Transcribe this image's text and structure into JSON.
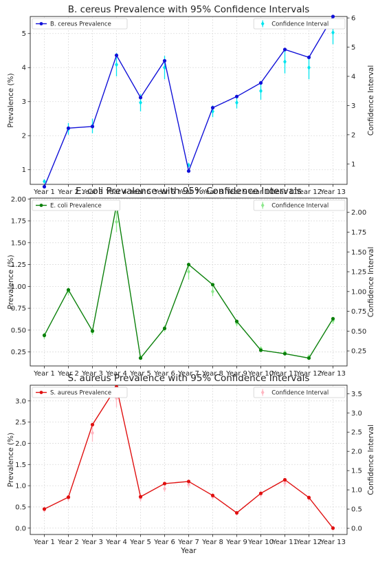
{
  "xlabel": "Year",
  "chart_data": [
    {
      "type": "line",
      "title": "B. cereus Prevalence with 95% Confidence Intervals",
      "xlabel": "",
      "ylabel": "Prevalence (%)",
      "y2label": "Confidence Interval",
      "categories": [
        "Year 1",
        "Year 2",
        "Year 3",
        "Year 4",
        "Year 5",
        "Year 6",
        "Year 7",
        "Year 8",
        "Year 9",
        "Year 10",
        "Year 11",
        "Year 12",
        "Year 13"
      ],
      "ylim": [
        0.57,
        5.5
      ],
      "y2lim": [
        0.3,
        6.05
      ],
      "yticks": [
        1,
        2,
        3,
        4,
        5
      ],
      "y2ticks": [
        1,
        2,
        3,
        4,
        5,
        6
      ],
      "tick_decimals": 0,
      "grid": true,
      "legend_left": "top-left",
      "legend_right": "top-right",
      "series": [
        {
          "name": "B. cereus Prevalence",
          "axis": "left",
          "color": "#1010d8",
          "values": [
            0.5,
            2.22,
            2.27,
            4.36,
            3.12,
            4.2,
            0.96,
            2.82,
            3.15,
            3.55,
            4.53,
            4.3,
            5.5
          ]
        },
        {
          "name": "Confidence Interval",
          "axis": "right",
          "color": "#00e5ee",
          "values": [
            0.4,
            2.2,
            2.3,
            4.4,
            3.1,
            4.3,
            0.96,
            2.8,
            3.1,
            3.5,
            4.5,
            4.3,
            5.5
          ],
          "lower": [
            0.38,
            2.0,
            2.05,
            4.0,
            2.8,
            3.9,
            0.9,
            2.6,
            2.9,
            3.2,
            4.1,
            3.9,
            5.1
          ],
          "upper": [
            0.42,
            2.4,
            2.55,
            4.8,
            3.4,
            4.7,
            1.02,
            3.0,
            3.3,
            3.8,
            4.9,
            4.7,
            5.9
          ]
        }
      ]
    },
    {
      "type": "line",
      "title": "E. coli Prevalence with 95% Confidence Intervals",
      "xlabel": "",
      "ylabel": "Prevalence (%)",
      "y2label": "Confidence Interval",
      "categories": [
        "Year 1",
        "Year 2",
        "Year 3",
        "Year 4",
        "Year 5",
        "Year 6",
        "Year 7",
        "Year 8",
        "Year 9",
        "Year 10",
        "Year 11",
        "Year 12",
        "Year 13"
      ],
      "ylim": [
        0.09,
        2.01
      ],
      "y2lim": [
        0.06,
        2.18
      ],
      "yticks": [
        0.25,
        0.5,
        0.75,
        1.0,
        1.25,
        1.5,
        1.75,
        2.0
      ],
      "y2ticks": [
        0.25,
        0.5,
        0.75,
        1.0,
        1.25,
        1.5,
        1.75,
        2.0
      ],
      "tick_decimals": 2,
      "grid": true,
      "legend_left": "top-left",
      "legend_right": "top-right",
      "series": [
        {
          "name": "E. coli Prevalence",
          "axis": "left",
          "color": "#0a800a",
          "values": [
            0.44,
            0.96,
            0.49,
            1.93,
            0.18,
            0.52,
            1.25,
            1.02,
            0.6,
            0.27,
            0.23,
            0.18,
            0.63
          ]
        },
        {
          "name": "Confidence Interval",
          "axis": "right",
          "color": "#8ee88e",
          "values": [
            0.44,
            1.0,
            0.49,
            1.88,
            0.17,
            0.53,
            1.25,
            1.0,
            0.6,
            0.28,
            0.23,
            0.18,
            0.63
          ],
          "lower": [
            0.4,
            0.95,
            0.45,
            1.75,
            0.15,
            0.49,
            1.15,
            0.94,
            0.56,
            0.26,
            0.21,
            0.16,
            0.59
          ],
          "upper": [
            0.48,
            1.05,
            0.53,
            2.01,
            0.19,
            0.57,
            1.35,
            1.06,
            0.64,
            0.3,
            0.25,
            0.2,
            0.67
          ]
        }
      ]
    },
    {
      "type": "line",
      "title": "S. aureus Prevalence with 95% Confidence Intervals",
      "xlabel": "Year",
      "ylabel": "Prevalence (%)",
      "y2label": "Confidence Interval",
      "categories": [
        "Year 1",
        "Year 2",
        "Year 3",
        "Year 4",
        "Year 5",
        "Year 6",
        "Year 7",
        "Year 8",
        "Year 9",
        "Year 10",
        "Year 11",
        "Year 12",
        "Year 13"
      ],
      "ylim": [
        -0.15,
        3.37
      ],
      "y2lim": [
        -0.16,
        3.72
      ],
      "yticks": [
        0.0,
        0.5,
        1.0,
        1.5,
        2.0,
        2.5,
        3.0
      ],
      "y2ticks": [
        0.0,
        0.5,
        1.0,
        1.5,
        2.0,
        2.5,
        3.0,
        3.5
      ],
      "tick_decimals": 1,
      "grid": true,
      "legend_left": "top-left",
      "legend_right": "top-right",
      "series": [
        {
          "name": "S. aureus Prevalence",
          "axis": "left",
          "color": "#e01010",
          "values": [
            0.45,
            0.73,
            2.44,
            3.33,
            0.74,
            1.05,
            1.1,
            0.77,
            0.36,
            0.82,
            1.14,
            0.72,
            0.0
          ]
        },
        {
          "name": "Confidence Interval",
          "axis": "right",
          "color": "#ffb6c1",
          "values": [
            0.48,
            0.78,
            2.48,
            3.38,
            0.78,
            1.03,
            1.14,
            0.82,
            0.39,
            0.88,
            1.18,
            0.78,
            0.0
          ],
          "lower": [
            0.42,
            0.7,
            2.25,
            3.15,
            0.7,
            0.95,
            1.05,
            0.75,
            0.34,
            0.8,
            1.08,
            0.7,
            0.0
          ],
          "upper": [
            0.54,
            0.86,
            2.71,
            3.61,
            0.86,
            1.11,
            1.23,
            0.89,
            0.44,
            0.96,
            1.28,
            0.86,
            0.0
          ]
        }
      ]
    }
  ]
}
